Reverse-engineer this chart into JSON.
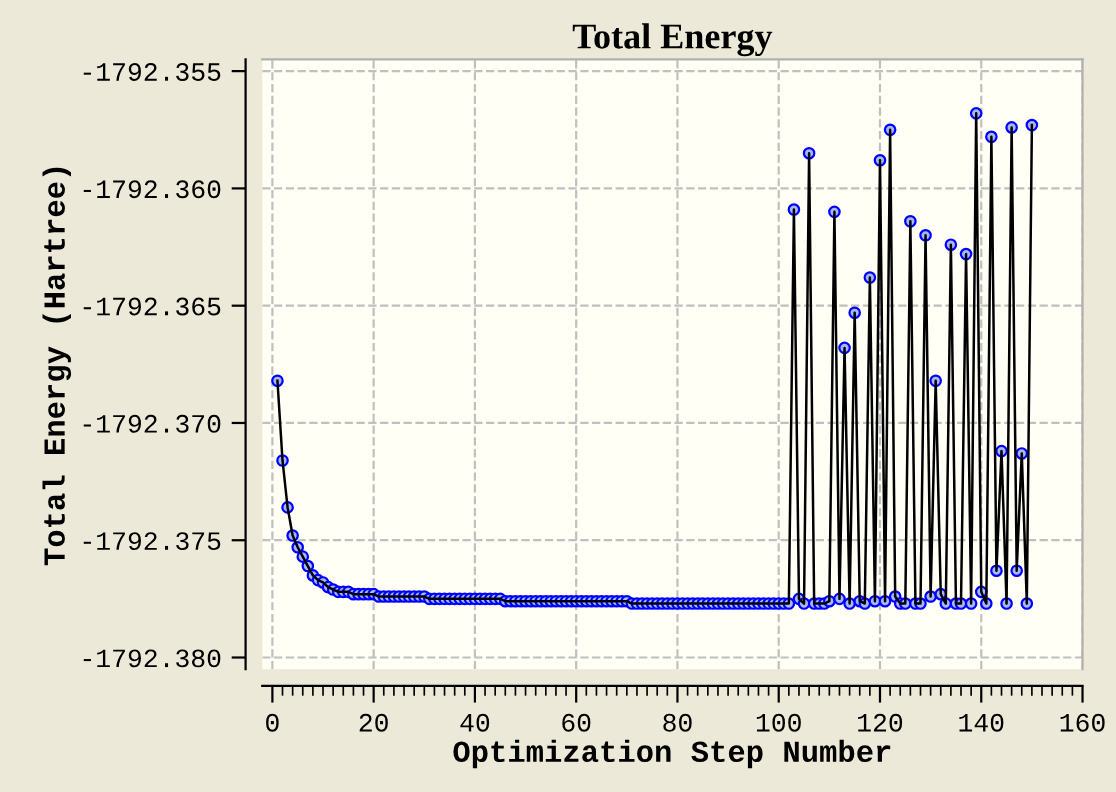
{
  "chart_data": {
    "type": "line",
    "title": "Total Energy",
    "xlabel": "Optimization Step Number",
    "ylabel": "Total Energy (Hartree)",
    "marker": "circle",
    "line_style": "solid",
    "grid": true,
    "legend": false,
    "xlim": [
      -2,
      160
    ],
    "xticks": [
      0,
      {
        "value": 2,
        "label": null
      },
      {
        "value": 4,
        "label": null
      },
      {
        "value": 6,
        "label": null
      },
      {
        "value": 8,
        "label": null
      },
      {
        "value": 10,
        "label": null
      },
      {
        "value": 12,
        "label": null
      },
      {
        "value": 14,
        "label": null
      },
      {
        "value": 16,
        "label": null
      },
      {
        "value": 18,
        "label": null
      },
      20,
      {
        "value": 22,
        "label": null
      },
      {
        "value": 24,
        "label": null
      },
      {
        "value": 26,
        "label": null
      },
      {
        "value": 28,
        "label": null
      },
      {
        "value": 30,
        "label": null
      },
      {
        "value": 32,
        "label": null
      },
      {
        "value": 34,
        "label": null
      },
      {
        "value": 36,
        "label": null
      },
      {
        "value": 38,
        "label": null
      },
      40,
      {
        "value": 42,
        "label": null
      },
      {
        "value": 44,
        "label": null
      },
      {
        "value": 46,
        "label": null
      },
      {
        "value": 48,
        "label": null
      },
      {
        "value": 50,
        "label": null
      },
      {
        "value": 52,
        "label": null
      },
      {
        "value": 54,
        "label": null
      },
      {
        "value": 56,
        "label": null
      },
      {
        "value": 58,
        "label": null
      },
      60,
      {
        "value": 62,
        "label": null
      },
      {
        "value": 64,
        "label": null
      },
      {
        "value": 66,
        "label": null
      },
      {
        "value": 68,
        "label": null
      },
      {
        "value": 70,
        "label": null
      },
      {
        "value": 72,
        "label": null
      },
      {
        "value": 74,
        "label": null
      },
      {
        "value": 76,
        "label": null
      },
      {
        "value": 78,
        "label": null
      },
      80,
      {
        "value": 82,
        "label": null
      },
      {
        "value": 84,
        "label": null
      },
      {
        "value": 86,
        "label": null
      },
      {
        "value": 88,
        "label": null
      },
      {
        "value": 90,
        "label": null
      },
      {
        "value": 92,
        "label": null
      },
      {
        "value": 94,
        "label": null
      },
      {
        "value": 96,
        "label": null
      },
      {
        "value": 98,
        "label": null
      },
      100,
      {
        "value": 102,
        "label": null
      },
      {
        "value": 104,
        "label": null
      },
      {
        "value": 106,
        "label": null
      },
      {
        "value": 108,
        "label": null
      },
      {
        "value": 110,
        "label": null
      },
      {
        "value": 112,
        "label": null
      },
      {
        "value": 114,
        "label": null
      },
      {
        "value": 116,
        "label": null
      },
      {
        "value": 118,
        "label": null
      },
      120,
      {
        "value": 122,
        "label": null
      },
      {
        "value": 124,
        "label": null
      },
      {
        "value": 126,
        "label": null
      },
      {
        "value": 128,
        "label": null
      },
      {
        "value": 130,
        "label": null
      },
      {
        "value": 132,
        "label": null
      },
      {
        "value": 134,
        "label": null
      },
      {
        "value": 136,
        "label": null
      },
      {
        "value": 138,
        "label": null
      },
      140,
      {
        "value": 142,
        "label": null
      },
      {
        "value": 144,
        "label": null
      },
      {
        "value": 146,
        "label": null
      },
      {
        "value": 148,
        "label": null
      },
      {
        "value": 150,
        "label": null
      },
      {
        "value": 152,
        "label": null
      },
      {
        "value": 154,
        "label": null
      },
      {
        "value": 156,
        "label": null
      },
      {
        "value": 158,
        "label": null
      },
      160
    ],
    "ylim": [
      -1792.3805,
      -1792.3545
    ],
    "yticks": [
      {
        "value": -1792.38,
        "label": "-1792.380"
      },
      {
        "value": -1792.375,
        "label": "-1792.375"
      },
      {
        "value": -1792.37,
        "label": "-1792.370"
      },
      {
        "value": -1792.365,
        "label": "-1792.365"
      },
      {
        "value": -1792.36,
        "label": "-1792.360"
      },
      {
        "value": -1792.355,
        "label": "-1792.355"
      }
    ],
    "x": [
      1,
      2,
      3,
      4,
      5,
      6,
      7,
      8,
      9,
      10,
      11,
      12,
      13,
      14,
      15,
      16,
      17,
      18,
      19,
      20,
      21,
      22,
      23,
      24,
      25,
      26,
      27,
      28,
      29,
      30,
      31,
      32,
      33,
      34,
      35,
      36,
      37,
      38,
      39,
      40,
      41,
      42,
      43,
      44,
      45,
      46,
      47,
      48,
      49,
      50,
      51,
      52,
      53,
      54,
      55,
      56,
      57,
      58,
      59,
      60,
      61,
      62,
      63,
      64,
      65,
      66,
      67,
      68,
      69,
      70,
      71,
      72,
      73,
      74,
      75,
      76,
      77,
      78,
      79,
      80,
      81,
      82,
      83,
      84,
      85,
      86,
      87,
      88,
      89,
      90,
      91,
      92,
      93,
      94,
      95,
      96,
      97,
      98,
      99,
      100,
      101,
      102,
      103,
      104,
      105,
      106,
      107,
      108,
      109,
      110,
      111,
      112,
      113,
      114,
      115,
      116,
      117,
      118,
      119,
      120,
      121,
      122,
      123,
      124,
      125,
      126,
      127,
      128,
      129,
      130,
      131,
      132,
      133,
      134,
      135,
      136,
      137,
      138,
      139,
      140,
      141,
      142,
      143,
      144,
      145,
      146,
      147,
      148,
      149,
      150
    ],
    "series": [
      {
        "color": "#0000ff",
        "values": [
          -1792.3682,
          -1792.3716,
          -1792.3736,
          -1792.3748,
          -1792.3753,
          -1792.3757,
          -1792.3761,
          -1792.3765,
          -1792.3767,
          -1792.3768,
          -1792.377,
          -1792.3771,
          -1792.3772,
          -1792.3772,
          -1792.3772,
          -1792.3773,
          -1792.3773,
          -1792.3773,
          -1792.3773,
          -1792.3773,
          -1792.3774,
          -1792.3774,
          -1792.3774,
          -1792.3774,
          -1792.3774,
          -1792.3774,
          -1792.3774,
          -1792.3774,
          -1792.3774,
          -1792.3774,
          -1792.3775,
          -1792.3775,
          -1792.3775,
          -1792.3775,
          -1792.3775,
          -1792.3775,
          -1792.3775,
          -1792.3775,
          -1792.3775,
          -1792.3775,
          -1792.3775,
          -1792.3775,
          -1792.3775,
          -1792.3775,
          -1792.3775,
          -1792.3776,
          -1792.3776,
          -1792.3776,
          -1792.3776,
          -1792.3776,
          -1792.3776,
          -1792.3776,
          -1792.3776,
          -1792.3776,
          -1792.3776,
          -1792.3776,
          -1792.3776,
          -1792.3776,
          -1792.3776,
          -1792.3776,
          -1792.3776,
          -1792.3776,
          -1792.3776,
          -1792.3776,
          -1792.3776,
          -1792.3776,
          -1792.3776,
          -1792.3776,
          -1792.3776,
          -1792.3776,
          -1792.3777,
          -1792.3777,
          -1792.3777,
          -1792.3777,
          -1792.3777,
          -1792.3777,
          -1792.3777,
          -1792.3777,
          -1792.3777,
          -1792.3777,
          -1792.3777,
          -1792.3777,
          -1792.3777,
          -1792.3777,
          -1792.3777,
          -1792.3777,
          -1792.3777,
          -1792.3777,
          -1792.3777,
          -1792.3777,
          -1792.3777,
          -1792.3777,
          -1792.3777,
          -1792.3777,
          -1792.3777,
          -1792.3777,
          -1792.3777,
          -1792.3777,
          -1792.3777,
          -1792.3777,
          -1792.3777,
          -1792.3777,
          -1792.3609,
          -1792.3775,
          -1792.3777,
          -1792.3585,
          -1792.3777,
          -1792.3777,
          -1792.3777,
          -1792.3776,
          -1792.361,
          -1792.3775,
          -1792.3668,
          -1792.3777,
          -1792.3653,
          -1792.3776,
          -1792.3777,
          -1792.3638,
          -1792.3776,
          -1792.3588,
          -1792.3776,
          -1792.3575,
          -1792.3774,
          -1792.3777,
          -1792.3777,
          -1792.3614,
          -1792.3777,
          -1792.3777,
          -1792.362,
          -1792.3774,
          -1792.3682,
          -1792.3773,
          -1792.3777,
          -1792.3624,
          -1792.3777,
          -1792.3777,
          -1792.3628,
          -1792.3777,
          -1792.3568,
          -1792.3772,
          -1792.3777,
          -1792.3578,
          -1792.3763,
          -1792.3712,
          -1792.3777,
          -1792.3574,
          -1792.3763,
          -1792.3713,
          -1792.3777,
          -1792.3573
        ]
      }
    ]
  }
}
